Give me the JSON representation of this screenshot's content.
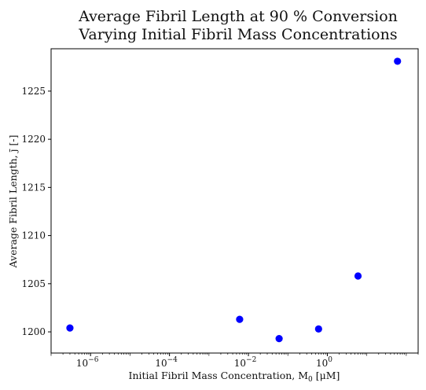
{
  "chart_data": {
    "type": "scatter",
    "title": [
      "Average Fibril Length at 90 % Conversion",
      "Varying Initial Fibril Mass Concentrations"
    ],
    "xlabel": "Initial Fibril Mass Concentration, M",
    "xlabel_sub": "0",
    "xlabel_unit": " [μM]",
    "ylabel": "Average Fibril Length, j̄ [-]",
    "xscale": "log",
    "xlim": [
      1e-07,
      200
    ],
    "ylim": [
      1197.8,
      1229.4
    ],
    "x_ticks": [
      {
        "value": 1e-06,
        "base": "10",
        "exp": "−6"
      },
      {
        "value": 0.0001,
        "base": "10",
        "exp": "−4"
      },
      {
        "value": 0.01,
        "base": "10",
        "exp": "−2"
      },
      {
        "value": 1,
        "base": "10",
        "exp": "0"
      }
    ],
    "y_ticks": [
      1200,
      1205,
      1210,
      1215,
      1220,
      1225
    ],
    "marker_color": "#0000ff",
    "grid": false,
    "points": [
      {
        "x": 3e-07,
        "y": 1200.4
      },
      {
        "x": 0.006,
        "y": 1201.3
      },
      {
        "x": 0.06,
        "y": 1199.3
      },
      {
        "x": 0.6,
        "y": 1200.3
      },
      {
        "x": 6,
        "y": 1205.8
      },
      {
        "x": 60,
        "y": 1228.1
      }
    ]
  }
}
